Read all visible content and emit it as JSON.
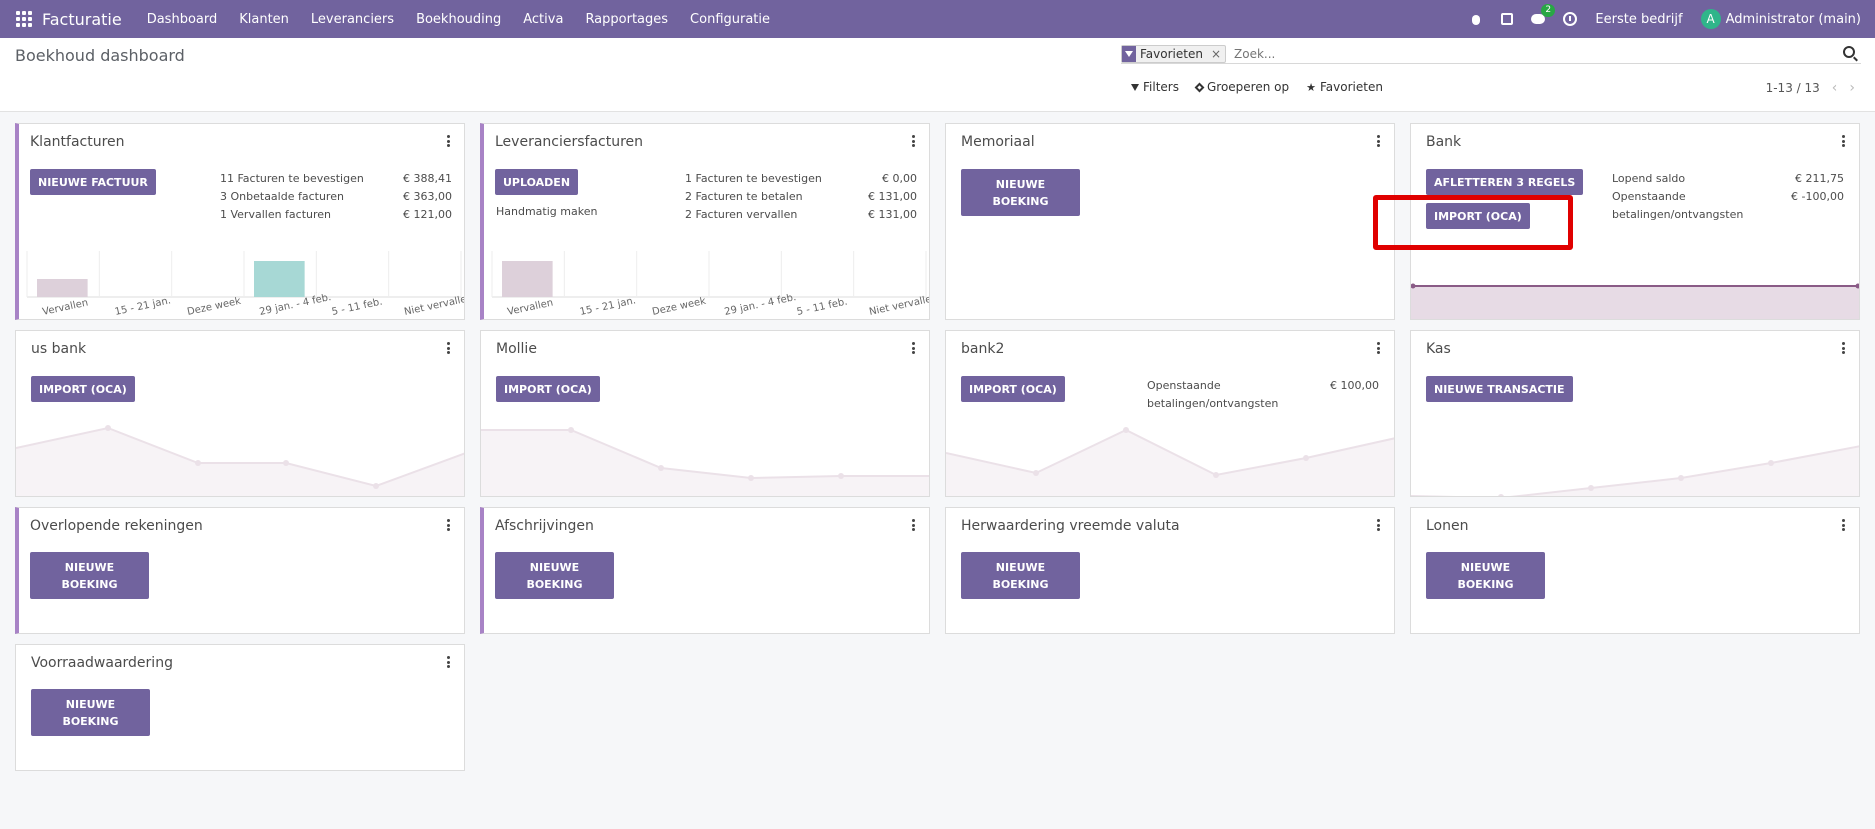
{
  "navbar": {
    "brand": "Facturatie",
    "menu": [
      "Dashboard",
      "Klanten",
      "Leveranciers",
      "Boekhouding",
      "Activa",
      "Rapportages",
      "Configuratie"
    ],
    "chat_badge": "2",
    "company": "Eerste bedrijf",
    "avatar_letter": "A",
    "user": "Administrator (main)"
  },
  "control_panel": {
    "title": "Boekhoud dashboard",
    "facet_label": "Favorieten",
    "facet_remove": "×",
    "search_placeholder": "Zoek...",
    "filters_label": "Filters",
    "groupby_label": "Groeperen op",
    "favorites_label": "Favorieten",
    "pager": "1-13 / 13",
    "pager_prev": "‹",
    "pager_next": "›"
  },
  "cards": {
    "klantfacturen": {
      "title": "Klantfacturen",
      "button": "NIEUWE FACTUUR",
      "stats": [
        {
          "label": "11 Facturen te bevestigen",
          "value": "€ 388,41"
        },
        {
          "label": "3 Onbetaalde facturen",
          "value": "€ 363,00"
        },
        {
          "label": "1 Vervallen facturen",
          "value": "€ 121,00"
        }
      ],
      "chart_labels": [
        "Vervallen",
        "15 - 21 jan.",
        "Deze week",
        "29 jan. - 4 feb.",
        "5 - 11 feb.",
        "Niet vervallen"
      ]
    },
    "leveranciersfacturen": {
      "title": "Leveranciersfacturen",
      "button": "UPLOADEN",
      "link": "Handmatig maken",
      "stats": [
        {
          "label": "1 Facturen te bevestigen",
          "value": "€ 0,00"
        },
        {
          "label": "2 Facturen te betalen",
          "value": "€ 131,00"
        },
        {
          "label": "2 Facturen vervallen",
          "value": "€ 131,00"
        }
      ],
      "chart_labels": [
        "Vervallen",
        "15 - 21 jan.",
        "Deze week",
        "29 jan. - 4 feb.",
        "5 - 11 feb.",
        "Niet vervallen"
      ]
    },
    "memoriaal": {
      "title": "Memoriaal",
      "button_line1": "NIEUWE",
      "button_line2": "BOEKING"
    },
    "bank": {
      "title": "Bank",
      "button1": "AFLETTEREN 3 REGELS",
      "button2": "IMPORT (OCA)",
      "stats": [
        {
          "label": "Lopend saldo",
          "value": "€ 211,75"
        },
        {
          "label": "Openstaande betalingen/ontvangsten",
          "value": "€ -100,00"
        }
      ]
    },
    "us_bank": {
      "title": "us bank",
      "button": "IMPORT (OCA)"
    },
    "mollie": {
      "title": "Mollie",
      "button": "IMPORT (OCA)"
    },
    "bank2": {
      "title": "bank2",
      "button": "IMPORT (OCA)",
      "stats": [
        {
          "label": "Openstaande betalingen/ontvangsten",
          "value": "€ 100,00"
        }
      ]
    },
    "kas": {
      "title": "Kas",
      "button": "NIEUWE TRANSACTIE"
    },
    "overlopende": {
      "title": "Overlopende rekeningen",
      "button_line1": "NIEUWE",
      "button_line2": "BOEKING"
    },
    "afschrijvingen": {
      "title": "Afschrijvingen",
      "button_line1": "NIEUWE",
      "button_line2": "BOEKING"
    },
    "herwaardering": {
      "title": "Herwaardering vreemde valuta",
      "button_line1": "NIEUWE",
      "button_line2": "BOEKING"
    },
    "lonen": {
      "title": "Lonen",
      "button_line1": "NIEUWE",
      "button_line2": "BOEKING"
    },
    "voorraadwaardering": {
      "title": "Voorraadwaardering",
      "button_line1": "NIEUWE",
      "button_line2": "BOEKING"
    }
  },
  "chart_data": [
    {
      "type": "bar",
      "categories": [
        "Vervallen",
        "15 - 21 jan.",
        "Deze week",
        "29 jan. - 4 feb.",
        "5 - 11 feb.",
        "Niet vervallen"
      ],
      "values": [
        0.5,
        0,
        0,
        1,
        0,
        0
      ],
      "colors": [
        "#ddd0da",
        "",
        "",
        "#a7d8d5",
        "",
        ""
      ]
    },
    {
      "type": "bar",
      "categories": [
        "Vervallen",
        "15 - 21 jan.",
        "Deze week",
        "29 jan. - 4 feb.",
        "5 - 11 feb.",
        "Niet vervallen"
      ],
      "values": [
        1,
        0,
        0,
        0,
        0,
        0
      ],
      "colors": [
        "#ddd0da",
        "",
        "",
        "",
        "",
        ""
      ]
    }
  ],
  "colors": {
    "primary": "#71639e",
    "accent": "#a883c6",
    "highlight": "#e00000"
  }
}
